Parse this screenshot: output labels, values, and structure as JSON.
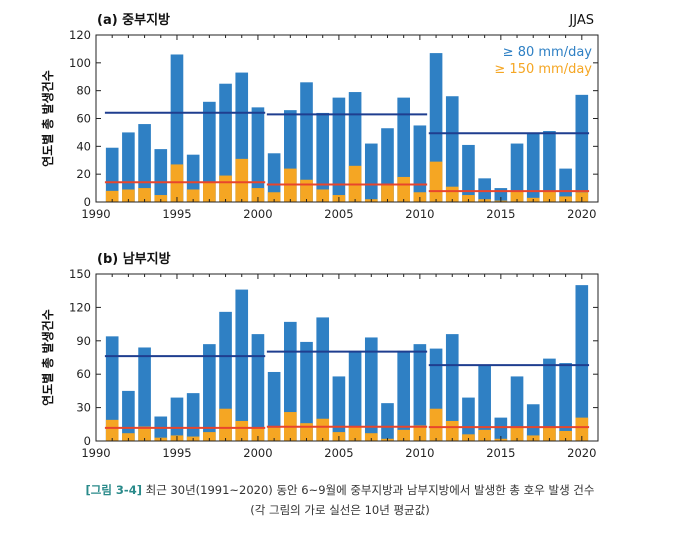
{
  "caption": {
    "label": "[그림 3-4]",
    "text": "최근 30년(1991~2020) 동안 6~9월에 중부지방과 남부지방에서 발생한 총 호우 발생 건수",
    "note": "(각 그림의 가로 실선은 10년 평균값)"
  },
  "colors": {
    "blue_bar": "#2f80c4",
    "orange_bar": "#f5a623",
    "blue_mean_line": "#1f3e8f",
    "red_mean_line": "#e8452c"
  },
  "chart_data": [
    {
      "type": "bar",
      "title": "(a) 중부지방",
      "corner_label": "JJAS",
      "ylabel": "연도별 총 발생건수",
      "xlim": [
        1990,
        2021
      ],
      "ylim": [
        0,
        120
      ],
      "xticks": [
        1990,
        1995,
        2000,
        2005,
        2010,
        2015,
        2020
      ],
      "yticks": [
        0,
        20,
        40,
        60,
        80,
        100,
        120
      ],
      "legend_position": "top-right",
      "x": [
        1991,
        1992,
        1993,
        1994,
        1995,
        1996,
        1997,
        1998,
        1999,
        2000,
        2001,
        2002,
        2003,
        2004,
        2005,
        2006,
        2007,
        2008,
        2009,
        2010,
        2011,
        2012,
        2013,
        2014,
        2015,
        2016,
        2017,
        2018,
        2019,
        2020
      ],
      "series": [
        {
          "name": "≥ 80 mm/day",
          "color": "#2f80c4",
          "values": [
            39,
            50,
            56,
            38,
            106,
            34,
            72,
            85,
            93,
            68,
            35,
            66,
            86,
            64,
            75,
            79,
            42,
            53,
            75,
            55,
            107,
            76,
            41,
            17,
            10,
            42,
            49,
            51,
            24,
            77
          ]
        },
        {
          "name": "≥ 150 mm/day",
          "color": "#f5a623",
          "values": [
            8,
            9,
            10,
            5,
            27,
            9,
            14,
            19,
            31,
            10,
            7,
            24,
            16,
            9,
            5,
            26,
            2,
            12,
            18,
            7,
            29,
            11,
            5,
            2,
            1,
            8,
            3,
            8,
            4,
            7
          ]
        }
      ],
      "mean_lines": [
        {
          "series": "≥ 80 mm/day",
          "color": "#1f3e8f",
          "segments": [
            {
              "from": 1991,
              "to": 2000,
              "value": 64.1
            },
            {
              "from": 2001,
              "to": 2010,
              "value": 63.0
            },
            {
              "from": 2011,
              "to": 2020,
              "value": 49.4
            }
          ]
        },
        {
          "series": "≥ 150 mm/day",
          "color": "#e8452c",
          "segments": [
            {
              "from": 1991,
              "to": 2000,
              "value": 14.2
            },
            {
              "from": 2001,
              "to": 2010,
              "value": 12.6
            },
            {
              "from": 2011,
              "to": 2020,
              "value": 7.8
            }
          ]
        }
      ]
    },
    {
      "type": "bar",
      "title": "(b) 남부지방",
      "ylabel": "연도별 총 발생건수",
      "xlim": [
        1990,
        2021
      ],
      "ylim": [
        0,
        150
      ],
      "xticks": [
        1990,
        1995,
        2000,
        2005,
        2010,
        2015,
        2020
      ],
      "yticks": [
        0,
        30,
        60,
        90,
        120,
        150
      ],
      "x": [
        1991,
        1992,
        1993,
        1994,
        1995,
        1996,
        1997,
        1998,
        1999,
        2000,
        2001,
        2002,
        2003,
        2004,
        2005,
        2006,
        2007,
        2008,
        2009,
        2010,
        2011,
        2012,
        2013,
        2014,
        2015,
        2016,
        2017,
        2018,
        2019,
        2020
      ],
      "series": [
        {
          "name": "≥ 80 mm/day",
          "color": "#2f80c4",
          "values": [
            94,
            45,
            84,
            22,
            39,
            43,
            87,
            116,
            136,
            96,
            62,
            107,
            89,
            111,
            58,
            81,
            93,
            34,
            81,
            87,
            83,
            96,
            39,
            68,
            21,
            58,
            33,
            74,
            70,
            140
          ]
        },
        {
          "name": "≥ 150 mm/day",
          "color": "#f5a623",
          "values": [
            19,
            7,
            13,
            3,
            5,
            4,
            8,
            29,
            18,
            12,
            12,
            26,
            16,
            20,
            8,
            13,
            7,
            2,
            10,
            14,
            29,
            18,
            6,
            10,
            2,
            12,
            5,
            13,
            9,
            21
          ]
        }
      ],
      "mean_lines": [
        {
          "series": "≥ 80 mm/day",
          "color": "#1f3e8f",
          "segments": [
            {
              "from": 1991,
              "to": 2000,
              "value": 76.2
            },
            {
              "from": 2001,
              "to": 2010,
              "value": 80.3
            },
            {
              "from": 2011,
              "to": 2020,
              "value": 68.2
            }
          ]
        },
        {
          "series": "≥ 150 mm/day",
          "color": "#e8452c",
          "segments": [
            {
              "from": 1991,
              "to": 2000,
              "value": 11.8
            },
            {
              "from": 2001,
              "to": 2010,
              "value": 12.8
            },
            {
              "from": 2011,
              "to": 2020,
              "value": 12.5
            }
          ]
        }
      ]
    }
  ]
}
